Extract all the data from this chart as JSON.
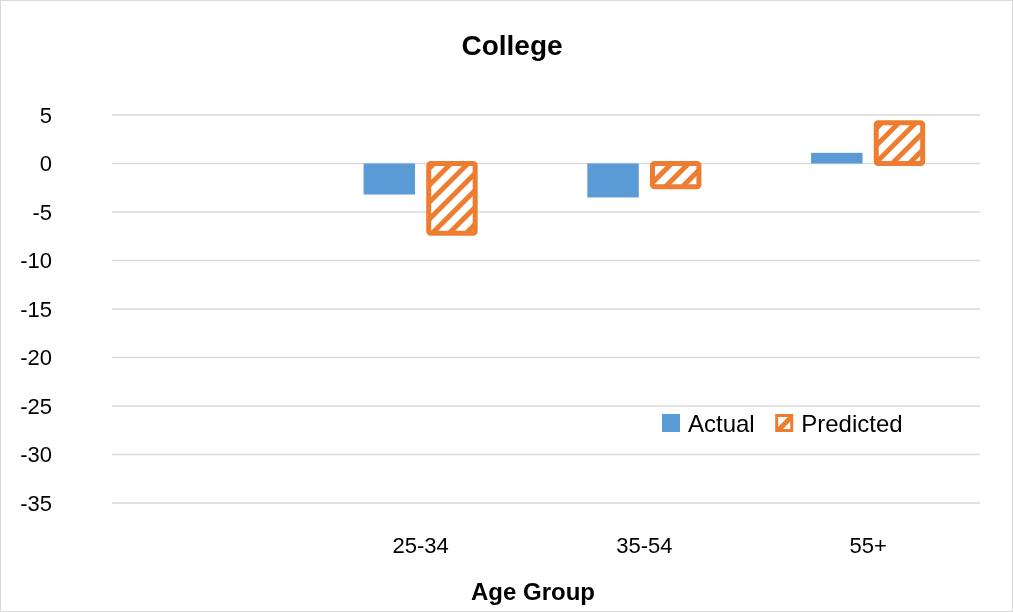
{
  "chart_data": {
    "type": "bar",
    "title": "College",
    "xlabel": "Age Group",
    "categories": [
      null,
      "25-34",
      "35-54",
      "55+"
    ],
    "series": [
      {
        "name": "Actual",
        "color": "#5b9bd5",
        "values": [
          null,
          -3.2,
          -3.5,
          1.1
        ]
      },
      {
        "name": "Predicted",
        "color": "#ed7d31",
        "values": [
          null,
          -7.2,
          -2.4,
          4.2
        ]
      }
    ],
    "ylim": [
      -35,
      5
    ],
    "yticks": [
      5,
      0,
      -5,
      -10,
      -15,
      -20,
      -25,
      -30,
      -35
    ],
    "grid": "y",
    "legend": "bottom right"
  }
}
